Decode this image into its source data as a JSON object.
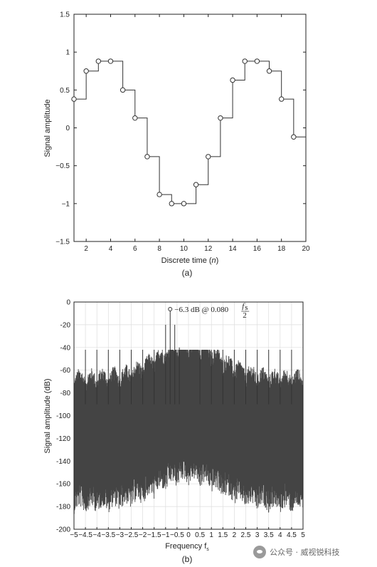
{
  "chart_data": [
    {
      "type": "line",
      "style": "step",
      "markers": "circle-open",
      "caption": "(a)",
      "xlabel": "Discrete time (n)",
      "ylabel": "Signal amplitude",
      "xlim": [
        1,
        20
      ],
      "ylim": [
        -1.5,
        1.5
      ],
      "x_ticks": [
        "2",
        "4",
        "6",
        "8",
        "10",
        "12",
        "14",
        "16",
        "18",
        "20"
      ],
      "y_ticks": [
        "1.5",
        "1",
        "0.5",
        "0",
        "−0.5",
        "−1",
        "−1.5"
      ],
      "grid": false,
      "x": [
        1,
        2,
        3,
        4,
        5,
        6,
        7,
        8,
        9,
        10,
        11,
        12,
        13,
        14,
        15,
        16,
        17,
        18,
        19
      ],
      "values": [
        0.38,
        0.75,
        0.88,
        0.88,
        0.5,
        0.13,
        -0.38,
        -0.88,
        -1.0,
        -1.0,
        -0.75,
        -0.38,
        0.13,
        0.63,
        0.88,
        0.88,
        0.75,
        0.38,
        -0.12
      ]
    },
    {
      "type": "line",
      "caption": "(b)",
      "xlabel": "Frequency f",
      "xlabel_subscript": "s",
      "ylabel": "Signal amplitude (dB)",
      "xlim": [
        -5,
        5
      ],
      "ylim": [
        -200,
        0
      ],
      "x_ticks": [
        "−5",
        "−4.5",
        "−4",
        "−3.5",
        "−3",
        "−2.5",
        "−2",
        "−1.5",
        "−1",
        "−0.5",
        "0",
        "0.5",
        "1",
        "1.5",
        "2",
        "2.5",
        "3",
        "3.5",
        "4",
        "4.5",
        "5"
      ],
      "y_ticks": [
        "0",
        "-20",
        "-40",
        "-60",
        "-80",
        "-100",
        "-120",
        "-140",
        "-160",
        "-180",
        "-200"
      ],
      "grid": true,
      "annotation": {
        "text": "−6.3 dB @ 0.080",
        "frac_num": "f",
        "frac_num_sub": "s",
        "frac_den": "2",
        "x": -0.8,
        "y": -6.3
      },
      "spectrum": {
        "noise_floor_db": [
          -190,
          -60
        ],
        "spur_peaks": [
          {
            "x": -4.5,
            "y": -42
          },
          {
            "x": -4.0,
            "y": -42
          },
          {
            "x": -3.5,
            "y": -42
          },
          {
            "x": -3.0,
            "y": -42
          },
          {
            "x": -2.5,
            "y": -42
          },
          {
            "x": -2.0,
            "y": -42
          },
          {
            "x": -1.5,
            "y": -42
          },
          {
            "x": -1.0,
            "y": -20
          },
          {
            "x": -0.8,
            "y": -6.3
          },
          {
            "x": -0.6,
            "y": -20
          },
          {
            "x": -0.4,
            "y": -40
          },
          {
            "x": 0.5,
            "y": -42
          },
          {
            "x": 1.0,
            "y": -42
          },
          {
            "x": 1.5,
            "y": -42
          },
          {
            "x": 2.0,
            "y": -42
          },
          {
            "x": 2.5,
            "y": -42
          },
          {
            "x": 3.0,
            "y": -42
          },
          {
            "x": 3.5,
            "y": -42
          },
          {
            "x": 4.0,
            "y": -42
          },
          {
            "x": 4.5,
            "y": -42
          }
        ]
      }
    }
  ],
  "watermark": {
    "icon": "wechat-channel-icon",
    "text": "公众号 · 威视锐科技"
  }
}
